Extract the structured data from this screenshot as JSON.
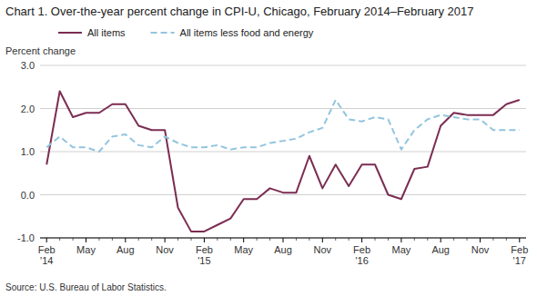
{
  "chart_data": {
    "type": "line",
    "title": "Chart 1. Over-the-year percent change in CPI-U, Chicago, February 2014–February 2017",
    "ylabel": "Percent change",
    "source": "Source: U.S. Bureau of Labor Statistics.",
    "categories": [
      "Feb\n'14",
      null,
      null,
      "May",
      null,
      null,
      "Aug",
      null,
      null,
      "Nov",
      null,
      null,
      "Feb\n'15",
      null,
      null,
      "May",
      null,
      null,
      "Aug",
      null,
      null,
      "Nov",
      null,
      null,
      "Feb\n'16",
      null,
      null,
      "May",
      null,
      null,
      "Aug",
      null,
      null,
      "Nov",
      null,
      null,
      "Feb\n'17"
    ],
    "series": [
      {
        "name": "All items",
        "color": "#7b2d52",
        "line_style": "solid",
        "values": [
          0.7,
          2.4,
          1.8,
          1.9,
          1.9,
          2.1,
          2.1,
          1.6,
          1.5,
          1.5,
          -0.3,
          -0.85,
          -0.85,
          -0.7,
          -0.55,
          -0.1,
          -0.1,
          0.15,
          0.05,
          0.05,
          0.9,
          0.15,
          0.7,
          0.2,
          0.7,
          0.7,
          0.0,
          -0.1,
          0.6,
          0.65,
          1.6,
          1.9,
          1.85,
          1.85,
          1.85,
          2.1,
          2.2
        ]
      },
      {
        "name": "All items less food and energy",
        "color": "#92c5de",
        "line_style": "dashed",
        "values": [
          1.1,
          1.35,
          1.1,
          1.1,
          1.0,
          1.35,
          1.4,
          1.15,
          1.1,
          1.35,
          1.2,
          1.1,
          1.1,
          1.15,
          1.05,
          1.1,
          1.1,
          1.2,
          1.25,
          1.3,
          1.45,
          1.55,
          2.2,
          1.75,
          1.7,
          1.8,
          1.75,
          1.05,
          1.5,
          1.75,
          1.85,
          1.8,
          1.75,
          1.75,
          1.5,
          1.5,
          1.5
        ]
      }
    ],
    "ylim": [
      -1.0,
      3.0
    ],
    "yticks": [
      {
        "value": -1.0,
        "label": "-1.0"
      },
      {
        "value": 0.0,
        "label": "0.0"
      },
      {
        "value": 1.0,
        "label": "1.0"
      },
      {
        "value": 2.0,
        "label": "2.0"
      },
      {
        "value": 3.0,
        "label": "3.0"
      }
    ],
    "grid": true,
    "legend": "upper left"
  }
}
